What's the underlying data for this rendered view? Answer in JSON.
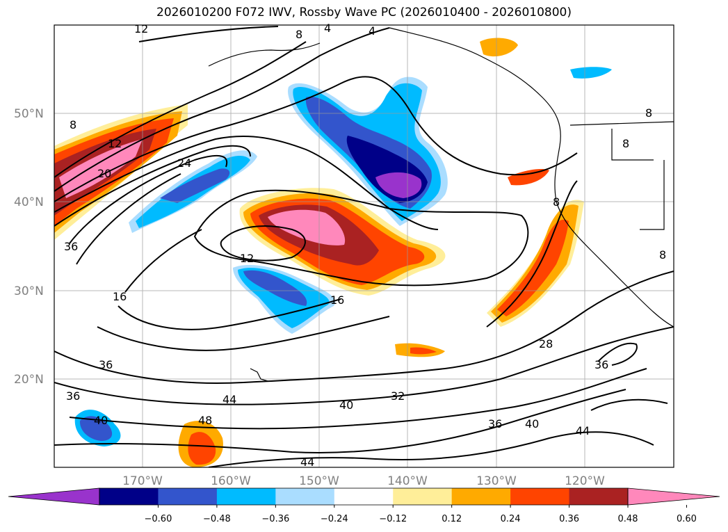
{
  "title": "2026010200 F072 IWV, Rossby Wave PC (2026010400 - 2026010800)",
  "latitudes": [
    {
      "label": "50°N"
    },
    {
      "label": "40°N"
    },
    {
      "label": "30°N"
    },
    {
      "label": "20°N"
    }
  ],
  "longitudes": [
    {
      "label": "170°W"
    },
    {
      "label": "160°W"
    },
    {
      "label": "150°W"
    },
    {
      "label": "140°W"
    },
    {
      "label": "130°W"
    },
    {
      "label": "120°W"
    }
  ],
  "colorbar": {
    "colors": [
      "#9933cc",
      "#000088",
      "#3355cc",
      "#00bbff",
      "#aaddff",
      "#ffffff",
      "#ffee99",
      "#ffaa00",
      "#ff4400",
      "#aa2222",
      "#ff88bb"
    ],
    "levels": [
      "−0.60",
      "−0.48",
      "−0.36",
      "−0.24",
      "−0.12",
      "0.12",
      "0.24",
      "0.36",
      "0.48",
      "0.60"
    ]
  },
  "contour_labels": [
    "12",
    "4",
    "4",
    "8",
    "8",
    "12",
    "20",
    "24",
    "36",
    "12",
    "16",
    "16",
    "36",
    "36",
    "40",
    "44",
    "48",
    "44",
    "40",
    "32",
    "36",
    "40",
    "44",
    "28",
    "36",
    "8",
    "8",
    "8",
    "8"
  ]
}
